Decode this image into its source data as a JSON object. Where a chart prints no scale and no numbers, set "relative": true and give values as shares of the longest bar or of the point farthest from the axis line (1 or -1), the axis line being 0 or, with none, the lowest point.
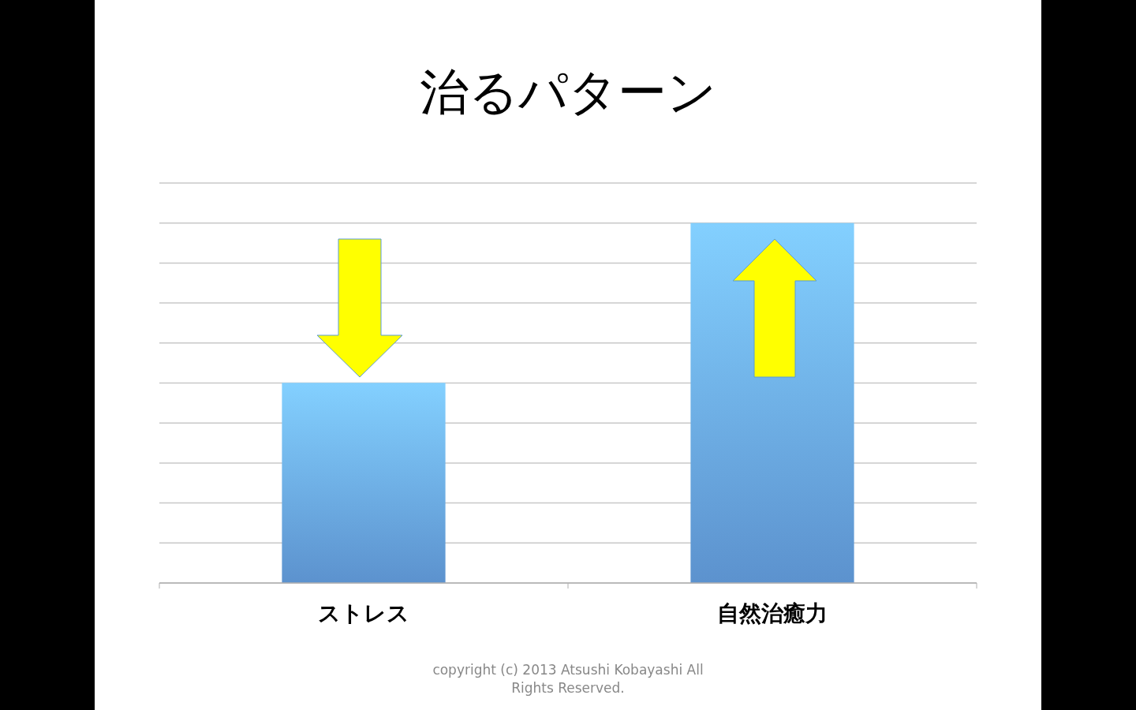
{
  "chart_data": {
    "type": "bar",
    "title": "治るパターン",
    "categories": [
      "ストレス",
      "自然治癒力"
    ],
    "values": [
      0.556,
      1
    ],
    "relative": true,
    "color": "#6aa8ee",
    "grid": true,
    "annotations": [
      "copyright (c) 2013 Atsushi Kobayashi All Rights Reserved."
    ]
  }
}
